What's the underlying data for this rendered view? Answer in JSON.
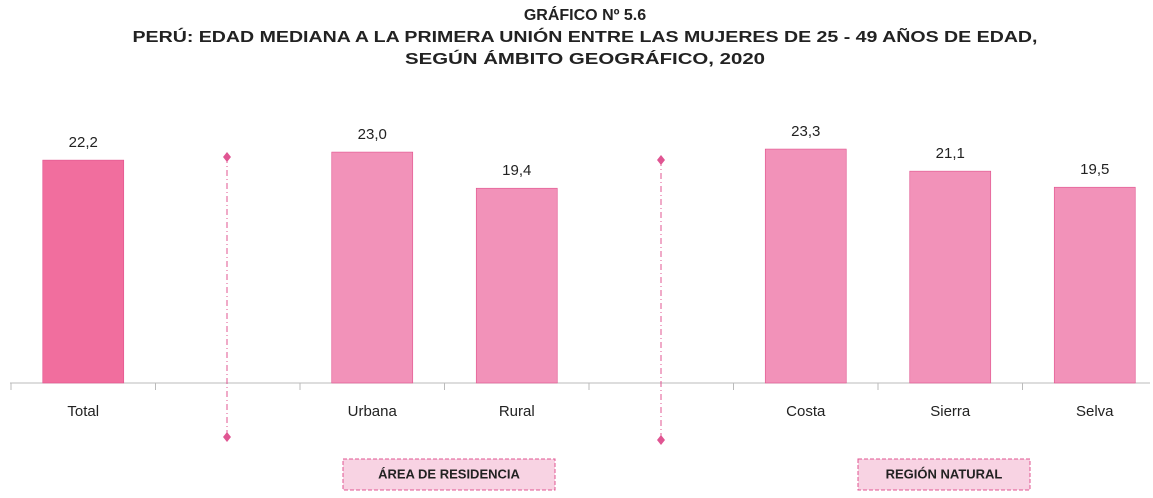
{
  "chart_data": {
    "type": "bar",
    "title": "GRÁFICO Nº 5.6",
    "subtitle": [
      "PERÚ: EDAD MEDIANA A LA PRIMERA UNIÓN ENTRE LAS MUJERES DE 25 - 49 AÑOS DE EDAD,",
      "SEGÚN ÁMBITO GEOGRÁFICO, 2020"
    ],
    "categories": [
      "Total",
      null,
      "Urbana",
      "Rural",
      null,
      "Costa",
      "Sierra",
      "Selva"
    ],
    "values": [
      22.2,
      null,
      23.0,
      19.4,
      null,
      23.3,
      21.1,
      19.5
    ],
    "value_labels": [
      "22,2",
      null,
      "23,0",
      "19,4",
      null,
      "23,3",
      "21,1",
      "19,5"
    ],
    "colors": [
      "#f16e9e",
      null,
      "#f292b9",
      "#f292b9",
      null,
      "#f292b9",
      "#f292b9",
      "#f292b9"
    ],
    "ylim": [
      0,
      25
    ],
    "groups": [
      "ÁREA DE RESIDENCIA",
      "REGIÓN NATURAL"
    ]
  }
}
